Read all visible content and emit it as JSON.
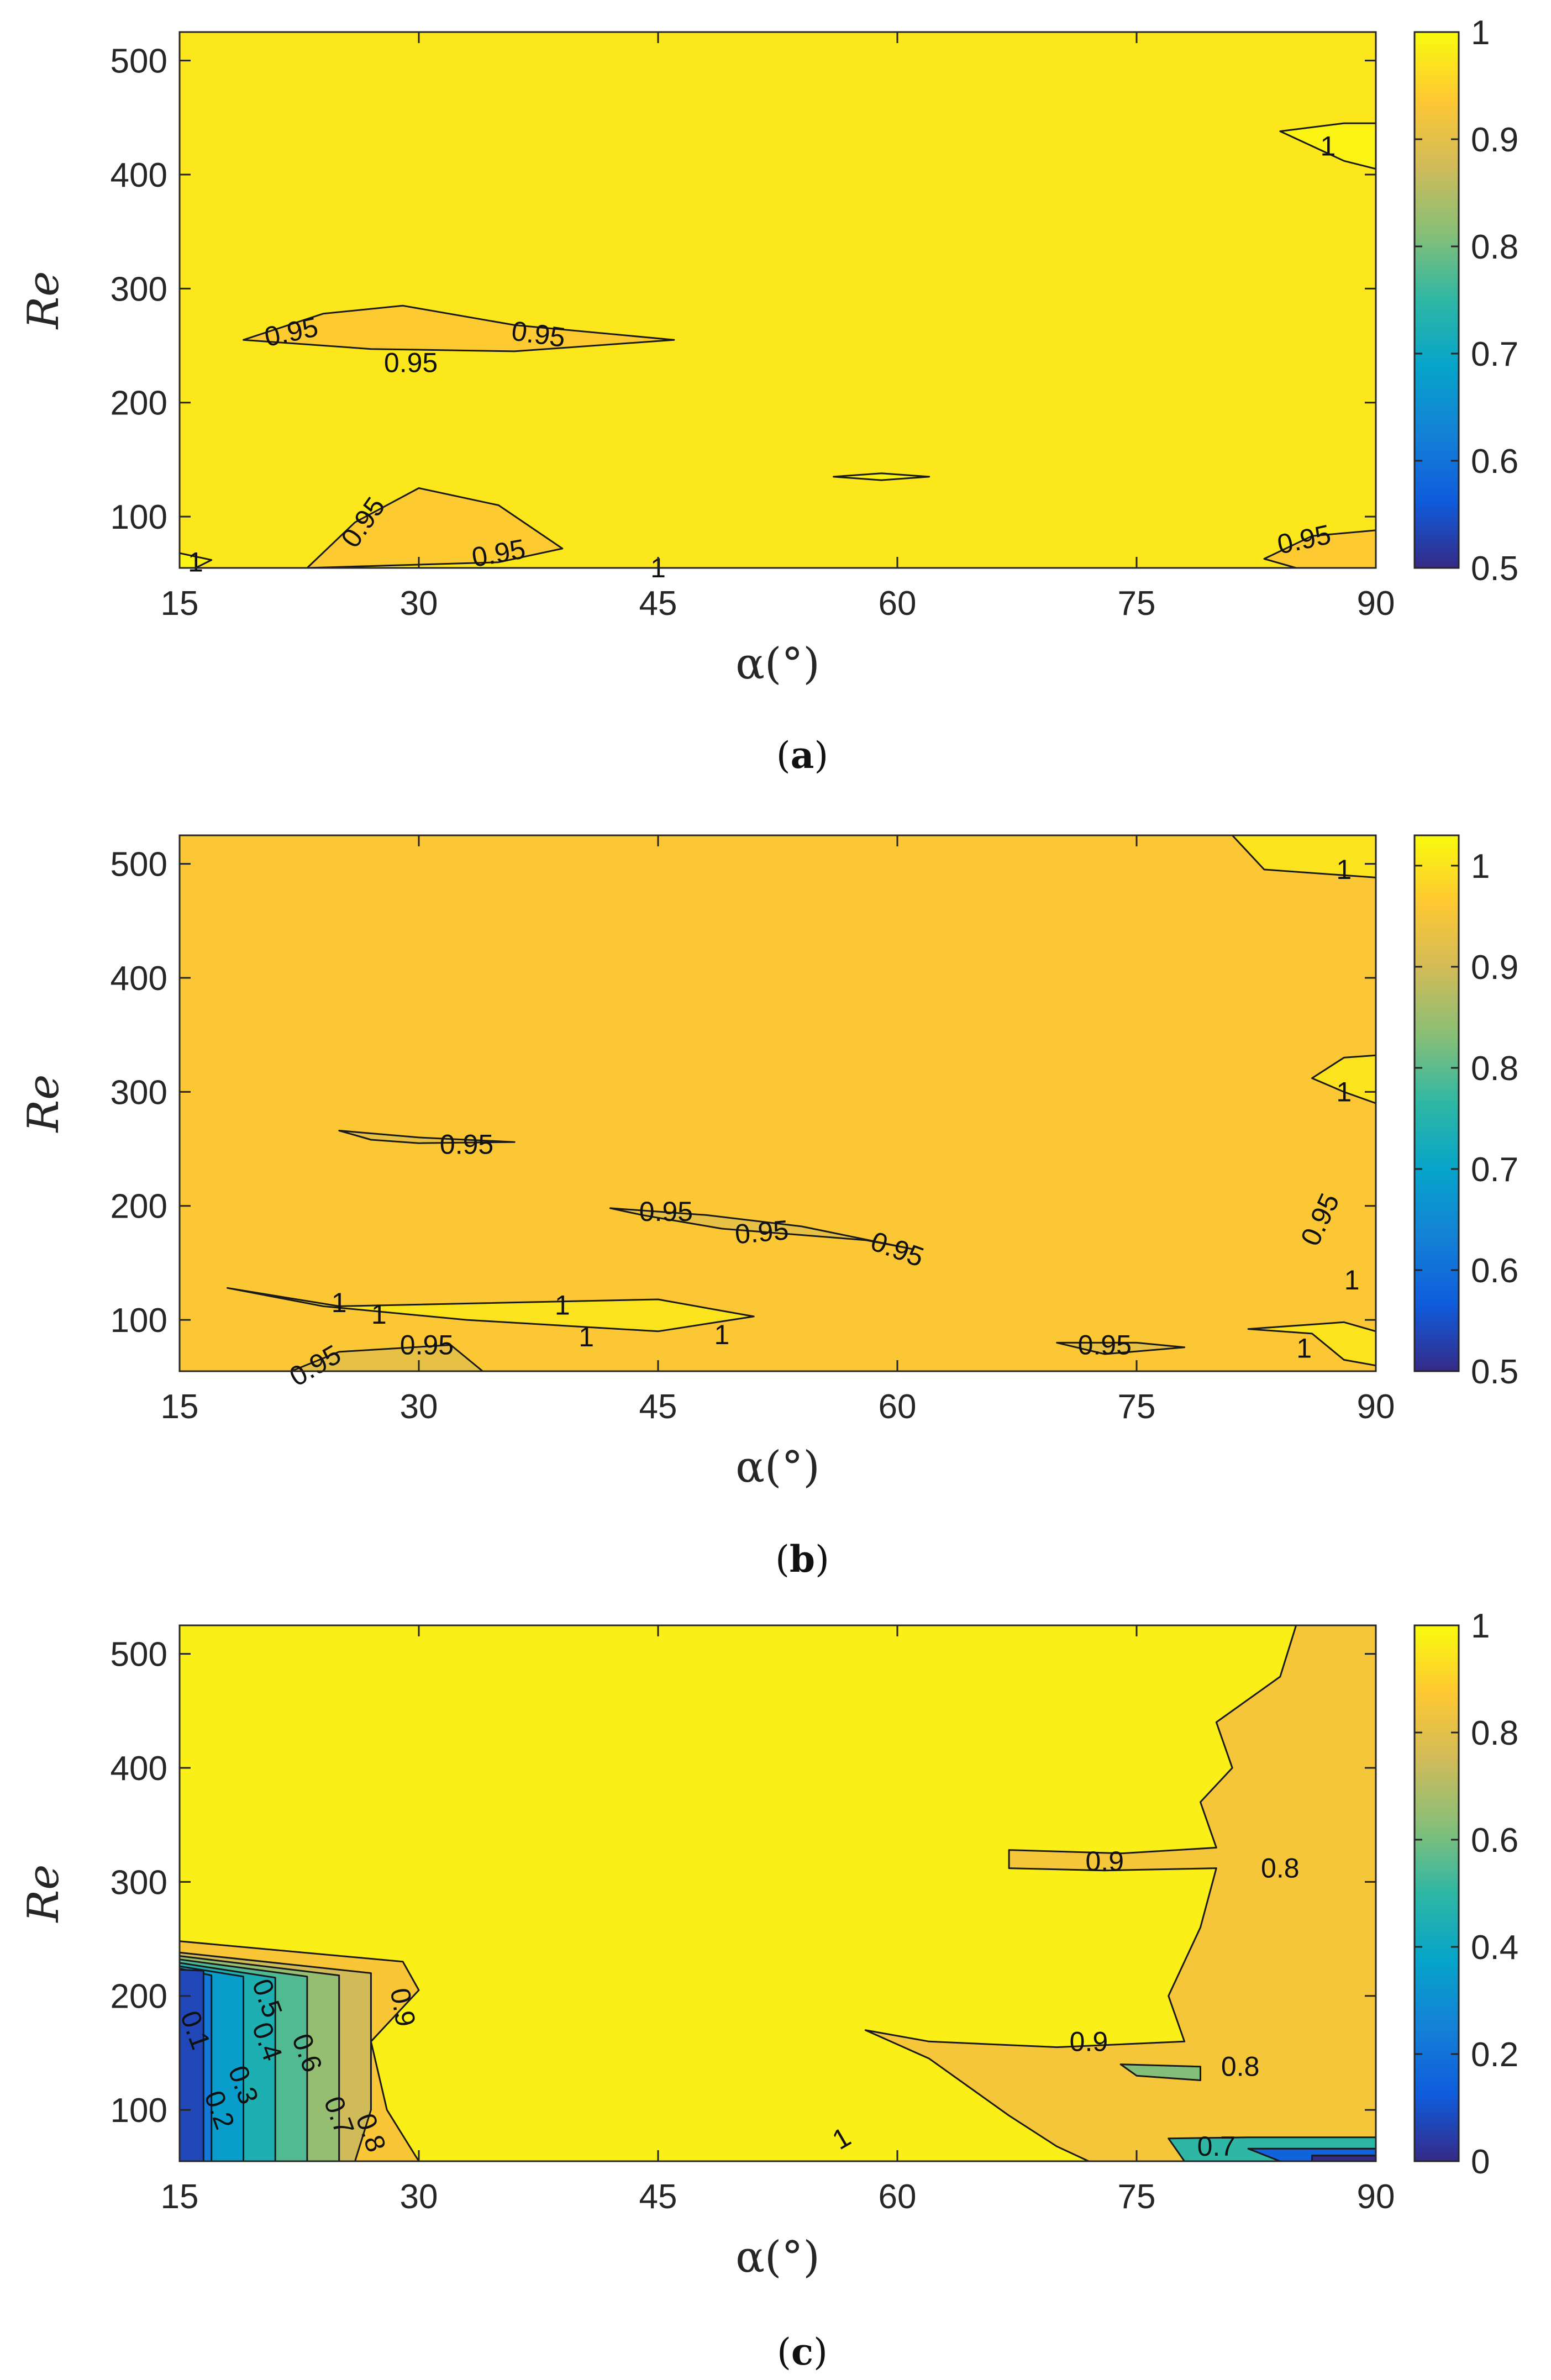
{
  "chart_data": [
    {
      "type": "contour",
      "panel": "a",
      "caption_letter": "a",
      "xlabel": "α(°)",
      "ylabel": "Re",
      "xlim": [
        15,
        90
      ],
      "ylim": [
        55,
        525
      ],
      "xticks": [
        15,
        30,
        45,
        60,
        75,
        90
      ],
      "yticks": [
        100,
        200,
        300,
        400,
        500
      ],
      "colorbar": {
        "min": 0.5,
        "max": 1,
        "ticks": [
          0.5,
          0.6,
          0.7,
          0.8,
          0.9,
          1
        ],
        "tick_labels": [
          "0.5",
          "0.6",
          "0.7",
          "0.8",
          "0.9",
          "1"
        ]
      },
      "background_value": 0.975,
      "regions": [
        {
          "value": 0.94,
          "points": [
            [
              19,
              255
            ],
            [
              24,
              278
            ],
            [
              29,
              285
            ],
            [
              36,
              268
            ],
            [
              46,
              255
            ],
            [
              36,
              245
            ],
            [
              27,
              247
            ]
          ]
        },
        {
          "value": 0.94,
          "points": [
            [
              23,
              55
            ],
            [
              26,
              95
            ],
            [
              30,
              125
            ],
            [
              35,
              110
            ],
            [
              39,
              72
            ],
            [
              35,
              60
            ]
          ]
        },
        {
          "value": 0.94,
          "points": [
            [
              83,
              63
            ],
            [
              86,
              83
            ],
            [
              90,
              88
            ],
            [
              90,
              55
            ],
            [
              85,
              55
            ]
          ]
        },
        {
          "value": 0.99,
          "points": [
            [
              16,
              55
            ],
            [
              15,
              55
            ],
            [
              15,
              68
            ],
            [
              17,
              62
            ]
          ]
        },
        {
          "value": 0.99,
          "points": [
            [
              84,
              438
            ],
            [
              88,
              445
            ],
            [
              90,
              445
            ],
            [
              90,
              405
            ],
            [
              88,
              412
            ]
          ]
        },
        {
          "value": 0.99,
          "points": [
            [
              56,
              135
            ],
            [
              59,
              138
            ],
            [
              62,
              135
            ],
            [
              59,
              132
            ]
          ]
        }
      ],
      "contour_labels": [
        {
          "text": "0.95",
          "x": 22,
          "y": 262,
          "angle": -12
        },
        {
          "text": "0.95",
          "x": 37.5,
          "y": 260,
          "angle": 8
        },
        {
          "text": "0.95",
          "x": 29.5,
          "y": 235,
          "angle": 0
        },
        {
          "text": "0.95",
          "x": 26.5,
          "y": 95,
          "angle": -55
        },
        {
          "text": "0.95",
          "x": 35,
          "y": 68,
          "angle": -10
        },
        {
          "text": "0.95",
          "x": 85.5,
          "y": 80,
          "angle": -12
        },
        {
          "text": "1",
          "x": 16,
          "y": 60,
          "angle": 0
        },
        {
          "text": "1",
          "x": 45,
          "y": 55,
          "angle": 0
        },
        {
          "text": "1",
          "x": 87,
          "y": 425,
          "angle": 0
        }
      ]
    },
    {
      "type": "contour",
      "panel": "b",
      "caption_letter": "b",
      "xlabel": "α(°)",
      "ylabel": "Re",
      "xlim": [
        15,
        90
      ],
      "ylim": [
        55,
        525
      ],
      "xticks": [
        15,
        30,
        45,
        60,
        75,
        90
      ],
      "yticks": [
        100,
        200,
        300,
        400,
        500
      ],
      "colorbar": {
        "min": 0.5,
        "max": 1.03,
        "ticks": [
          0.5,
          0.6,
          0.7,
          0.8,
          0.9,
          1
        ],
        "tick_labels": [
          "0.5",
          "0.6",
          "0.7",
          "0.8",
          "0.9",
          "1"
        ]
      },
      "background_value": 0.96,
      "regions": [
        {
          "value": 1.0,
          "points": [
            [
              81,
              525
            ],
            [
              83,
              495
            ],
            [
              90,
              488
            ],
            [
              90,
              525
            ]
          ]
        },
        {
          "value": 1.0,
          "points": [
            [
              18,
              128
            ],
            [
              25,
              112
            ],
            [
              45,
              118
            ],
            [
              51,
              103
            ],
            [
              45,
              90
            ],
            [
              33,
              100
            ],
            [
              24,
              112
            ]
          ]
        },
        {
          "value": 1.0,
          "points": [
            [
              86,
              312
            ],
            [
              88,
              330
            ],
            [
              90,
              332
            ],
            [
              90,
              290
            ],
            [
              88,
              300
            ]
          ]
        },
        {
          "value": 1.0,
          "points": [
            [
              82,
              92
            ],
            [
              86,
              88
            ],
            [
              88,
              65
            ],
            [
              90,
              60
            ],
            [
              90,
              90
            ],
            [
              88,
              98
            ]
          ]
        },
        {
          "value": 0.93,
          "points": [
            [
              25,
              266
            ],
            [
              30,
              260
            ],
            [
              36,
              256
            ],
            [
              30,
              255
            ],
            [
              27,
              258
            ]
          ]
        },
        {
          "value": 0.93,
          "points": [
            [
              42,
              198
            ],
            [
              48,
              192
            ],
            [
              54,
              182
            ],
            [
              61,
              162
            ],
            [
              58,
              170
            ],
            [
              49,
              180
            ],
            [
              44,
              192
            ]
          ]
        },
        {
          "value": 0.93,
          "points": [
            [
              70,
              80
            ],
            [
              75,
              80
            ],
            [
              78,
              76
            ],
            [
              73,
              70
            ]
          ]
        },
        {
          "value": 0.93,
          "points": [
            [
              22,
              55
            ],
            [
              25,
              72
            ],
            [
              32,
              78
            ],
            [
              34,
              55
            ]
          ]
        }
      ],
      "contour_labels": [
        {
          "text": "0.95",
          "x": 33,
          "y": 254,
          "angle": 0
        },
        {
          "text": "0.95",
          "x": 45.5,
          "y": 195,
          "angle": 0
        },
        {
          "text": "0.95",
          "x": 51.5,
          "y": 177,
          "angle": -5
        },
        {
          "text": "0.95",
          "x": 60,
          "y": 162,
          "angle": 20
        },
        {
          "text": "0.95",
          "x": 30.5,
          "y": 78,
          "angle": 0
        },
        {
          "text": "0.95",
          "x": 23.5,
          "y": 60,
          "angle": -30
        },
        {
          "text": "0.95",
          "x": 73,
          "y": 78,
          "angle": 0
        },
        {
          "text": "0.95",
          "x": 86.5,
          "y": 188,
          "angle": -65
        },
        {
          "text": "1",
          "x": 25,
          "y": 115,
          "angle": 0
        },
        {
          "text": "1",
          "x": 27.5,
          "y": 105,
          "angle": 0
        },
        {
          "text": "1",
          "x": 39,
          "y": 113,
          "angle": 0
        },
        {
          "text": "1",
          "x": 40.5,
          "y": 85,
          "angle": 0
        },
        {
          "text": "1",
          "x": 49,
          "y": 87,
          "angle": 0
        },
        {
          "text": "1",
          "x": 88,
          "y": 495,
          "angle": 0
        },
        {
          "text": "1",
          "x": 88,
          "y": 300,
          "angle": 0
        },
        {
          "text": "1",
          "x": 88.5,
          "y": 135,
          "angle": 0
        },
        {
          "text": "1",
          "x": 85.5,
          "y": 75,
          "angle": 0
        }
      ]
    },
    {
      "type": "contour",
      "panel": "c",
      "caption_letter": "c",
      "xlabel": "α(°)",
      "ylabel": "Re",
      "xlim": [
        15,
        90
      ],
      "ylim": [
        55,
        525
      ],
      "xticks": [
        15,
        30,
        45,
        60,
        75,
        90
      ],
      "yticks": [
        100,
        200,
        300,
        400,
        500
      ],
      "colorbar": {
        "min": 0,
        "max": 1,
        "ticks": [
          0,
          0.2,
          0.4,
          0.6,
          0.8,
          1
        ],
        "tick_labels": [
          "0",
          "0.2",
          "0.4",
          "0.6",
          "0.8",
          "1"
        ]
      },
      "background_value": 0.97,
      "regions": [
        {
          "value": 0.85,
          "points": [
            [
              85,
              525
            ],
            [
              84,
              480
            ],
            [
              80,
              440
            ],
            [
              81,
              400
            ],
            [
              79,
              370
            ],
            [
              80,
              330
            ],
            [
              74,
              325
            ],
            [
              67,
              328
            ],
            [
              67,
              312
            ],
            [
              73,
              310
            ],
            [
              80,
              312
            ],
            [
              79,
              260
            ],
            [
              78,
              230
            ],
            [
              77,
              200
            ],
            [
              78,
              160
            ],
            [
              70,
              155
            ],
            [
              62,
              160
            ],
            [
              58,
              170
            ],
            [
              62,
              145
            ],
            [
              67,
              95
            ],
            [
              70,
              68
            ],
            [
              72,
              55
            ],
            [
              90,
              55
            ],
            [
              90,
              525
            ]
          ]
        },
        {
          "value": 0.86,
          "points": [
            [
              15,
              248
            ],
            [
              29,
              230
            ],
            [
              30,
              205
            ],
            [
              27,
              160
            ],
            [
              28,
              100
            ],
            [
              30,
              55
            ],
            [
              15,
              55
            ]
          ]
        },
        {
          "value": 0.75,
          "points": [
            [
              15,
              238
            ],
            [
              27,
              220
            ],
            [
              27,
              100
            ],
            [
              26,
              55
            ],
            [
              15,
              55
            ]
          ]
        },
        {
          "value": 0.65,
          "points": [
            [
              15,
              235
            ],
            [
              25,
              218
            ],
            [
              25,
              55
            ],
            [
              15,
              55
            ]
          ]
        },
        {
          "value": 0.55,
          "points": [
            [
              15,
              232
            ],
            [
              23,
              217
            ],
            [
              23,
              55
            ],
            [
              15,
              55
            ]
          ]
        },
        {
          "value": 0.45,
          "points": [
            [
              15,
              229
            ],
            [
              21,
              216
            ],
            [
              21,
              55
            ],
            [
              15,
              55
            ]
          ]
        },
        {
          "value": 0.35,
          "points": [
            [
              15,
              226
            ],
            [
              19,
              217
            ],
            [
              19,
              55
            ],
            [
              15,
              55
            ]
          ]
        },
        {
          "value": 0.22,
          "points": [
            [
              15,
              224
            ],
            [
              17,
              218
            ],
            [
              17,
              55
            ],
            [
              15,
              55
            ]
          ]
        },
        {
          "value": 0.07,
          "points": [
            [
              15,
              223
            ],
            [
              16.5,
              222
            ],
            [
              16.5,
              55
            ],
            [
              15,
              55
            ]
          ]
        },
        {
          "value": 0.62,
          "points": [
            [
              74,
              140
            ],
            [
              79,
              138
            ],
            [
              79,
              126
            ],
            [
              75,
              130
            ]
          ]
        },
        {
          "value": 0.5,
          "points": [
            [
              77,
              75
            ],
            [
              82,
              76
            ],
            [
              90,
              76
            ],
            [
              90,
              55
            ],
            [
              78,
              55
            ]
          ]
        },
        {
          "value": 0.15,
          "points": [
            [
              82,
              66
            ],
            [
              90,
              66
            ],
            [
              90,
              55
            ],
            [
              84,
              55
            ]
          ]
        },
        {
          "value": 0.0,
          "points": [
            [
              86,
              60
            ],
            [
              90,
              60
            ],
            [
              90,
              55
            ],
            [
              86,
              55
            ]
          ]
        }
      ],
      "contour_labels": [
        {
          "text": "0.1",
          "x": 16,
          "y": 170,
          "angle": 70
        },
        {
          "text": "0.2",
          "x": 17.5,
          "y": 100,
          "angle": 70
        },
        {
          "text": "0.3",
          "x": 19,
          "y": 122,
          "angle": 70
        },
        {
          "text": "0.4",
          "x": 20.5,
          "y": 160,
          "angle": 70
        },
        {
          "text": "0.5",
          "x": 20.5,
          "y": 198,
          "angle": 70
        },
        {
          "text": "0.6",
          "x": 23,
          "y": 150,
          "angle": 70
        },
        {
          "text": "0.7",
          "x": 25,
          "y": 95,
          "angle": 70
        },
        {
          "text": "0.8",
          "x": 27,
          "y": 80,
          "angle": 70
        },
        {
          "text": "0.9",
          "x": 29,
          "y": 190,
          "angle": 80
        },
        {
          "text": "0.9",
          "x": 73,
          "y": 318,
          "angle": 0
        },
        {
          "text": "0.8",
          "x": 84,
          "y": 312,
          "angle": 0
        },
        {
          "text": "0.9",
          "x": 72,
          "y": 160,
          "angle": 0
        },
        {
          "text": "0.8",
          "x": 81.5,
          "y": 138,
          "angle": 0
        },
        {
          "text": "0.7",
          "x": 80,
          "y": 68,
          "angle": 0
        },
        {
          "text": "1",
          "x": 56.5,
          "y": 75,
          "angle": -30
        }
      ]
    }
  ]
}
